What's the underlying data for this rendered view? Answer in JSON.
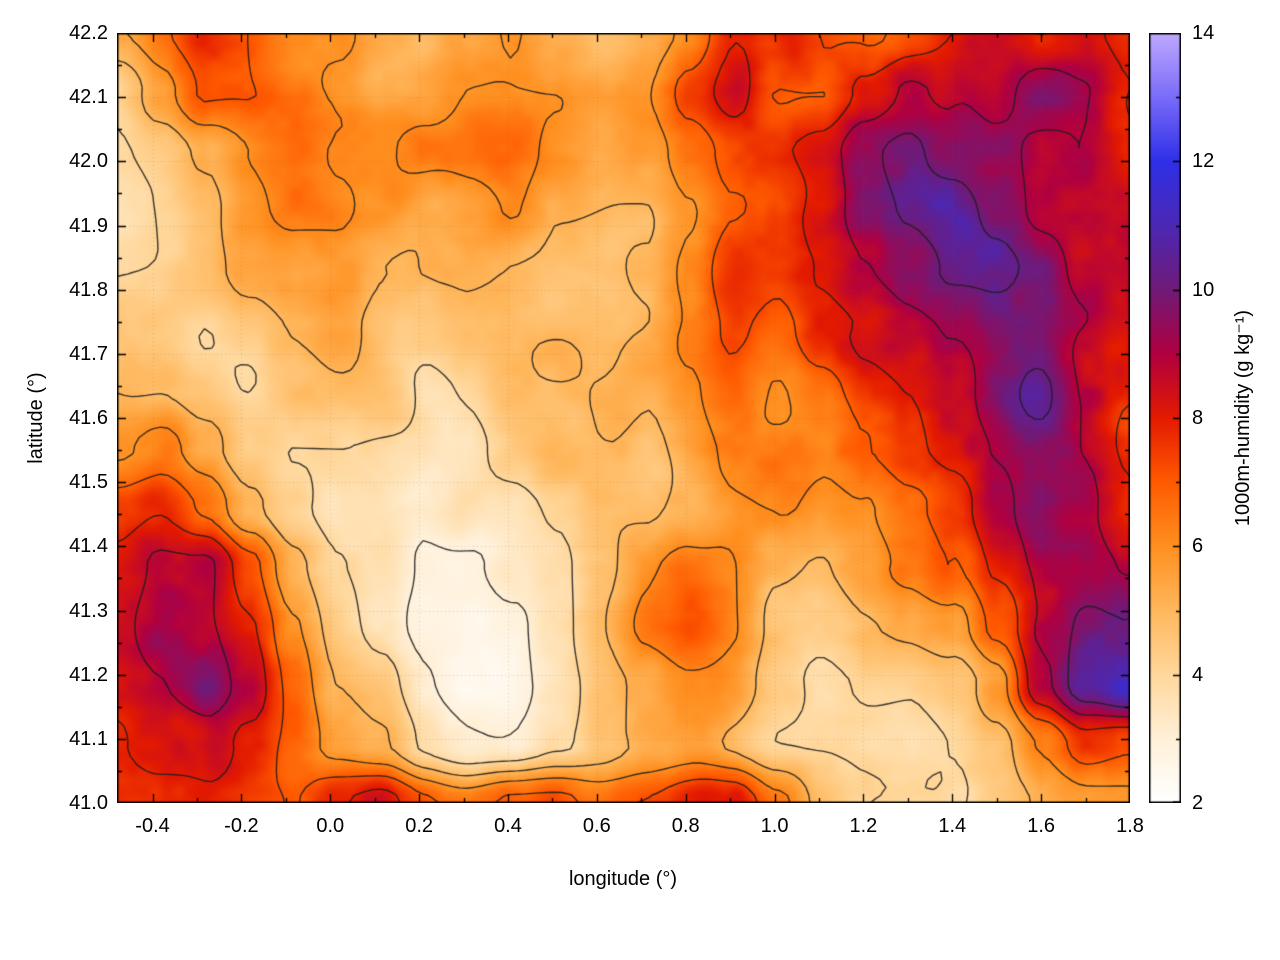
{
  "chart_data": {
    "type": "heatmap",
    "xlabel": "longitude (°)",
    "ylabel": "latitude (°)",
    "colorbar_label": "1000m-humidity (g kg⁻¹)",
    "xlim": [
      -0.48,
      1.8
    ],
    "ylim": [
      41.0,
      42.2
    ],
    "clim": [
      2,
      14
    ],
    "x_ticks": [
      -0.4,
      -0.2,
      0.0,
      0.2,
      0.4,
      0.6,
      0.8,
      1.0,
      1.2,
      1.4,
      1.6,
      1.8
    ],
    "x_tick_labels": [
      "-0.4",
      "-0.2",
      "0.0",
      "0.2",
      "0.4",
      "0.6",
      "0.8",
      "1.0",
      "1.2",
      "1.4",
      "1.6",
      "1.8"
    ],
    "y_ticks": [
      41.0,
      41.1,
      41.2,
      41.3,
      41.4,
      41.5,
      41.6,
      41.7,
      41.8,
      41.9,
      42.0,
      42.1,
      42.2
    ],
    "y_tick_labels": [
      "41.0",
      "41.1",
      "41.2",
      "41.3",
      "41.4",
      "41.5",
      "41.6",
      "41.7",
      "41.8",
      "41.9",
      "42.0",
      "42.1",
      "42.2"
    ],
    "colorbar_ticks": [
      2,
      4,
      6,
      8,
      10,
      12,
      14
    ],
    "colorbar_tick_labels": [
      "2",
      "4",
      "6",
      "8",
      "10",
      "12",
      "14"
    ],
    "contour_levels": [
      3,
      4,
      5,
      6,
      7,
      8,
      9,
      10
    ],
    "contour_color": "#1e1e1e",
    "frame_color": "#000000",
    "palette": [
      {
        "value": 2,
        "color": "#ffffff"
      },
      {
        "value": 3,
        "color": "#fff0d8"
      },
      {
        "value": 4,
        "color": "#ffd79b"
      },
      {
        "value": 5,
        "color": "#ffb75c"
      },
      {
        "value": 6,
        "color": "#ff8f1f"
      },
      {
        "value": 7,
        "color": "#ff5a00"
      },
      {
        "value": 8,
        "color": "#e31a00"
      },
      {
        "value": 9,
        "color": "#b00040"
      },
      {
        "value": 10,
        "color": "#701a78"
      },
      {
        "value": 11,
        "color": "#4b28b4"
      },
      {
        "value": 12,
        "color": "#2f2fe8"
      },
      {
        "value": 13,
        "color": "#7a6cf8"
      },
      {
        "value": 14,
        "color": "#bfa8ff"
      }
    ],
    "grid": {
      "description": "estimated humidity values (g/kg) on a coarse lon-lat grid, rows north to south",
      "lon_start": -0.48,
      "lon_end": 1.8,
      "lat_start": 42.2,
      "lat_end": 41.0,
      "ncols": 24,
      "nrows": 14,
      "values": [
        [
          6.5,
          7,
          7.5,
          7,
          6.5,
          6.5,
          6,
          5.5,
          6,
          6.5,
          6,
          5.5,
          6,
          6.5,
          8,
          7.5,
          6.5,
          7,
          7.5,
          8,
          8.5,
          8,
          8,
          7.5
        ],
        [
          4,
          5.5,
          7,
          7,
          6.5,
          6,
          5.5,
          5.5,
          6,
          6,
          6,
          5.5,
          6,
          7.5,
          8.5,
          7,
          7,
          8.5,
          9.5,
          9,
          8.5,
          9.5,
          9,
          8
        ],
        [
          3.5,
          4,
          5,
          6,
          6,
          5.5,
          5.5,
          6,
          6,
          6,
          5.5,
          5,
          5.5,
          6.5,
          7.5,
          8,
          8.5,
          10,
          10.5,
          9.5,
          9,
          8.5,
          9,
          8.5
        ],
        [
          3.5,
          4,
          4.5,
          5.5,
          6,
          6,
          5.5,
          5,
          5.5,
          6,
          5,
          5,
          5,
          6,
          7,
          7.5,
          8.5,
          9.5,
          10,
          10.5,
          9.5,
          8.5,
          8.5,
          9
        ],
        [
          4,
          4,
          4.5,
          5,
          5.5,
          5.5,
          5,
          5,
          5,
          5,
          5,
          5,
          5.5,
          6.5,
          7.5,
          7,
          8,
          9,
          9.5,
          10,
          10,
          9.5,
          8.5,
          8.5
        ],
        [
          4.5,
          4.5,
          4,
          4.5,
          5,
          5,
          4.5,
          4.5,
          5,
          5,
          5,
          5,
          5,
          6,
          7,
          6.5,
          7.5,
          8,
          8.5,
          9,
          9.5,
          9.5,
          9,
          8.5
        ],
        [
          5,
          5,
          4.5,
          4,
          4.5,
          4.5,
          4.5,
          4,
          4.5,
          5,
          5,
          5,
          5,
          5.5,
          6.5,
          6,
          6.5,
          7.5,
          8,
          8.5,
          9.5,
          10,
          9,
          8.5
        ],
        [
          6,
          6.5,
          5.5,
          4.5,
          4,
          4,
          4,
          4,
          4,
          4.5,
          5,
          5,
          5,
          5.5,
          6,
          6,
          6,
          7,
          8,
          8.5,
          9,
          9.5,
          9,
          8
        ],
        [
          7.5,
          8,
          7,
          5.5,
          4.5,
          4,
          4,
          3.5,
          4,
          4,
          4.5,
          5,
          5,
          5.5,
          6,
          6,
          5.5,
          6,
          7,
          7.5,
          8.5,
          9,
          9.5,
          8.5
        ],
        [
          8.5,
          9.5,
          9.5,
          7.5,
          5.5,
          4.5,
          4,
          3,
          3,
          3.5,
          4,
          5,
          5.5,
          6,
          6,
          5.5,
          5,
          5.5,
          6,
          7,
          8.5,
          9.5,
          9.5,
          9
        ],
        [
          9,
          10,
          9.5,
          8.5,
          6.5,
          5,
          4,
          3,
          2.8,
          3,
          4,
          5,
          6,
          6.5,
          6,
          5,
          4.5,
          5,
          5,
          5.5,
          7.5,
          9.5,
          10.5,
          10
        ],
        [
          8.5,
          9,
          9.5,
          8.5,
          6.5,
          5,
          4.5,
          3.5,
          3,
          3,
          3.5,
          4.5,
          5,
          5.5,
          5.5,
          4.5,
          4,
          4,
          4,
          4.5,
          5.5,
          8.5,
          10.5,
          11.5
        ],
        [
          8,
          8.5,
          8.5,
          7.5,
          6.5,
          5.5,
          5,
          4,
          3.5,
          3.5,
          4,
          4.5,
          5,
          5,
          4.5,
          4,
          4,
          3.8,
          3.8,
          4,
          4.5,
          6,
          7.5,
          7
        ],
        [
          7.5,
          7.5,
          7.5,
          7,
          7,
          8,
          8.5,
          7.5,
          7,
          7.5,
          7.5,
          7,
          7,
          7.5,
          7.5,
          6,
          4.5,
          4,
          4,
          4,
          4.5,
          5,
          5.5,
          5.5
        ]
      ]
    }
  }
}
